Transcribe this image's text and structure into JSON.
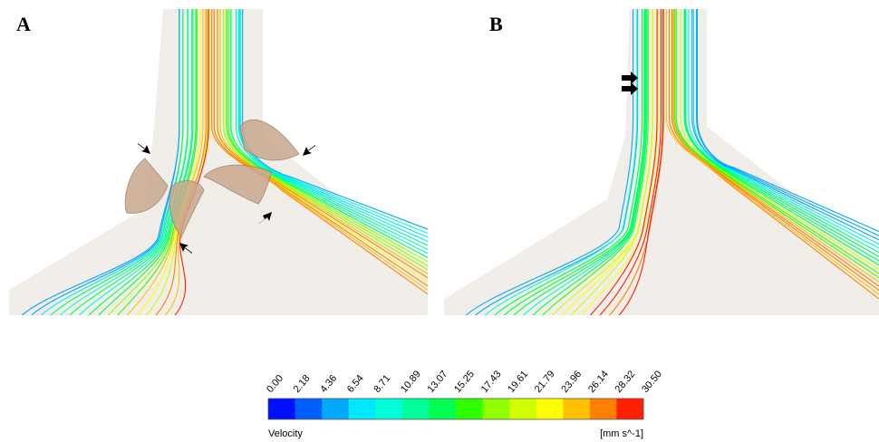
{
  "panels": [
    {
      "label": "A"
    },
    {
      "label": "B"
    }
  ],
  "colorbar": {
    "title": "Velocity",
    "unit": "[mm s^-1]",
    "ticks": [
      "0.00",
      "2.18",
      "4.36",
      "6.54",
      "8.71",
      "10.89",
      "13.07",
      "15.25",
      "17.43",
      "19.61",
      "21.79",
      "23.96",
      "26.14",
      "28.32",
      "30.50"
    ]
  }
}
